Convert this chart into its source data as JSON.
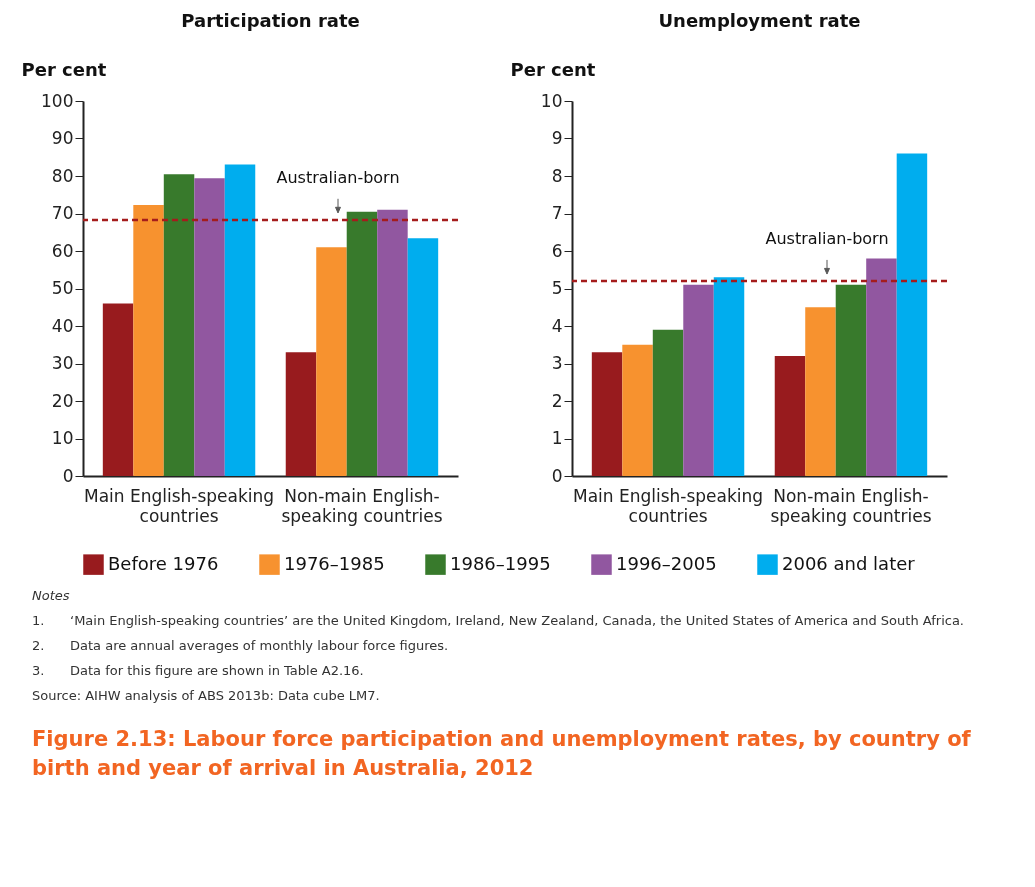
{
  "chart_data": [
    {
      "type": "bar",
      "title": "Participation rate",
      "ylabel": "Per cent",
      "categories": [
        "Main English-speaking countries",
        "Non-main English-speaking countries"
      ],
      "series": [
        {
          "name": "Before 1976",
          "color": "#981b1e",
          "values": [
            46,
            33
          ]
        },
        {
          "name": "1976–1985",
          "color": "#f7922f",
          "values": [
            72.3,
            61
          ]
        },
        {
          "name": "1986–1995",
          "color": "#387a2c",
          "values": [
            80.5,
            70.5
          ]
        },
        {
          "name": "1996–2005",
          "color": "#9157a0",
          "values": [
            79.4,
            71
          ]
        },
        {
          "name": "2006 and later",
          "color": "#00adee",
          "values": [
            83.1,
            63.4
          ]
        }
      ],
      "ylim": [
        0,
        100
      ],
      "yticks": [
        0,
        10,
        20,
        30,
        40,
        50,
        60,
        70,
        80,
        90,
        100
      ],
      "ref_lines": [
        {
          "axis": "y",
          "value": 68.3,
          "label": "Australian-born",
          "color": "#a51c1c",
          "line_style": "dashed"
        }
      ],
      "legend": "bottom"
    },
    {
      "type": "bar",
      "title": "Unemployment rate",
      "ylabel": "Per cent",
      "categories": [
        "Main English-speaking countries",
        "Non-main English-speaking countries"
      ],
      "series": [
        {
          "name": "Before 1976",
          "color": "#981b1e",
          "values": [
            3.3,
            3.2
          ]
        },
        {
          "name": "1976–1985",
          "color": "#f7922f",
          "values": [
            3.5,
            4.5
          ]
        },
        {
          "name": "1986–1995",
          "color": "#387a2c",
          "values": [
            3.9,
            5.1
          ]
        },
        {
          "name": "1996–2005",
          "color": "#9157a0",
          "values": [
            5.1,
            5.8
          ]
        },
        {
          "name": "2006 and later",
          "color": "#00adee",
          "values": [
            5.3,
            8.6
          ]
        }
      ],
      "ylim": [
        0,
        10
      ],
      "yticks": [
        0,
        1,
        2,
        3,
        4,
        5,
        6,
        7,
        8,
        9,
        10
      ],
      "ref_lines": [
        {
          "axis": "y",
          "value": 5.2,
          "label": "Australian-born",
          "color": "#a51c1c",
          "line_style": "dashed"
        }
      ],
      "annotations": [
        "Notes",
        "1.\t‘Main English-speaking countries’ are the United Kingdom, Ireland, New Zealand, Canada, the United States of America and South Africa.",
        "2.\tData are annual averages of monthly labour force figures.",
        "3.\tData for this figure are shown in Table A2.16.",
        "Source: AIHW analysis of ABS 2013b: Data cube LM7.",
        "Figure 2.13: Labour force participation and unemployment rates, by country of birth and year of arrival in Australia, 2012"
      ]
    }
  ]
}
